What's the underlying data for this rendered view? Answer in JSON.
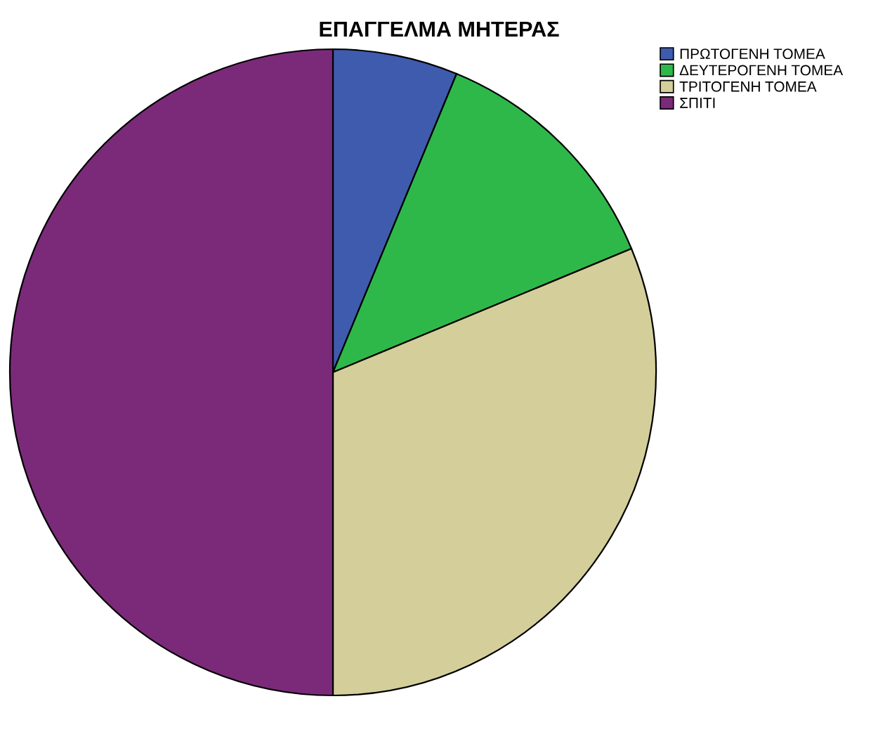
{
  "chart_data": {
    "type": "pie",
    "title": "ΕΠΑΓΓΕΛΜΑ ΜΗΤΕΡΑΣ",
    "categories": [
      "ΠΡΩΤΟΓΕΝΗ ΤΟΜΕΑ",
      "ΔΕΥΤΕΡΟΓΕΝΗ ΤΟΜΕΑ",
      "ΤΡΙΤΟΓΕΝΗ ΤΟΜΕΑ",
      "ΣΠΙΤΙ"
    ],
    "values": [
      6.25,
      12.5,
      31.25,
      50
    ],
    "colors": [
      "#3f5bae",
      "#2fb84a",
      "#d4cf9a",
      "#7b2a7a"
    ],
    "legend": "top right"
  }
}
